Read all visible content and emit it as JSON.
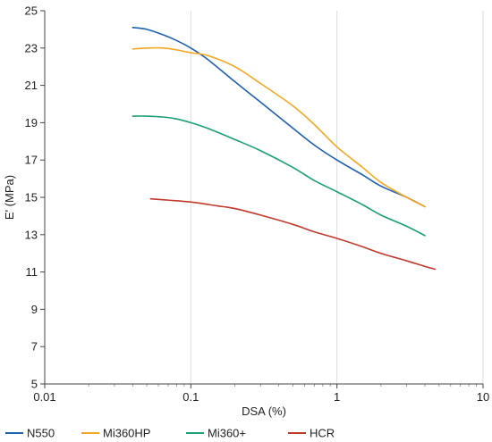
{
  "chart_data": {
    "type": "line",
    "xlabel": "DSA (%)",
    "ylabel": "E' (MPa)",
    "xscale": "log",
    "xlim": [
      0.01,
      10
    ],
    "ylim": [
      5,
      25
    ],
    "xticks": [
      {
        "value": 0.01,
        "label": "0.01"
      },
      {
        "value": 0.1,
        "label": "0.1"
      },
      {
        "value": 1,
        "label": "1"
      },
      {
        "value": 10,
        "label": "10"
      }
    ],
    "yticks": [
      {
        "value": 5,
        "label": "5"
      },
      {
        "value": 7,
        "label": "7"
      },
      {
        "value": 9,
        "label": "9"
      },
      {
        "value": 11,
        "label": "11"
      },
      {
        "value": 13,
        "label": "13"
      },
      {
        "value": 15,
        "label": "15"
      },
      {
        "value": 17,
        "label": "17"
      },
      {
        "value": 19,
        "label": "19"
      },
      {
        "value": 21,
        "label": "21"
      },
      {
        "value": 23,
        "label": "23"
      },
      {
        "value": 25,
        "label": "25"
      }
    ],
    "grid": "vertical",
    "legend_position": "bottom",
    "series": [
      {
        "name": "N550",
        "color": "#1f5fb0",
        "x": [
          0.04,
          0.05,
          0.065,
          0.08,
          0.1,
          0.13,
          0.2,
          0.3,
          0.5,
          0.7,
          1.0,
          1.5,
          2.0,
          3.0,
          4.0
        ],
        "y": [
          24.1,
          24.0,
          23.7,
          23.4,
          23.0,
          22.4,
          21.2,
          20.1,
          18.7,
          17.8,
          17.0,
          16.2,
          15.6,
          15.0,
          14.5
        ]
      },
      {
        "name": "Mi360HP",
        "color": "#f5a623",
        "x": [
          0.04,
          0.05,
          0.065,
          0.08,
          0.1,
          0.13,
          0.2,
          0.3,
          0.5,
          0.7,
          1.0,
          1.5,
          2.0,
          3.0,
          4.0
        ],
        "y": [
          22.95,
          23.0,
          23.0,
          22.9,
          22.75,
          22.6,
          22.0,
          21.1,
          19.9,
          18.9,
          17.7,
          16.6,
          15.8,
          15.0,
          14.5
        ]
      },
      {
        "name": "Mi360+",
        "color": "#1a9e77",
        "x": [
          0.04,
          0.05,
          0.065,
          0.08,
          0.1,
          0.13,
          0.2,
          0.3,
          0.5,
          0.7,
          1.0,
          1.5,
          2.0,
          3.0,
          4.0
        ],
        "y": [
          19.35,
          19.35,
          19.3,
          19.2,
          19.0,
          18.7,
          18.1,
          17.5,
          16.6,
          15.9,
          15.3,
          14.6,
          14.05,
          13.45,
          12.95
        ]
      },
      {
        "name": "HCR",
        "color": "#c0392b",
        "x": [
          0.053,
          0.07,
          0.1,
          0.15,
          0.2,
          0.3,
          0.5,
          0.7,
          1.0,
          1.5,
          2.0,
          3.0,
          4.0,
          4.7
        ],
        "y": [
          14.92,
          14.85,
          14.75,
          14.55,
          14.4,
          14.05,
          13.55,
          13.15,
          12.8,
          12.35,
          12.0,
          11.6,
          11.3,
          11.15
        ]
      }
    ]
  }
}
